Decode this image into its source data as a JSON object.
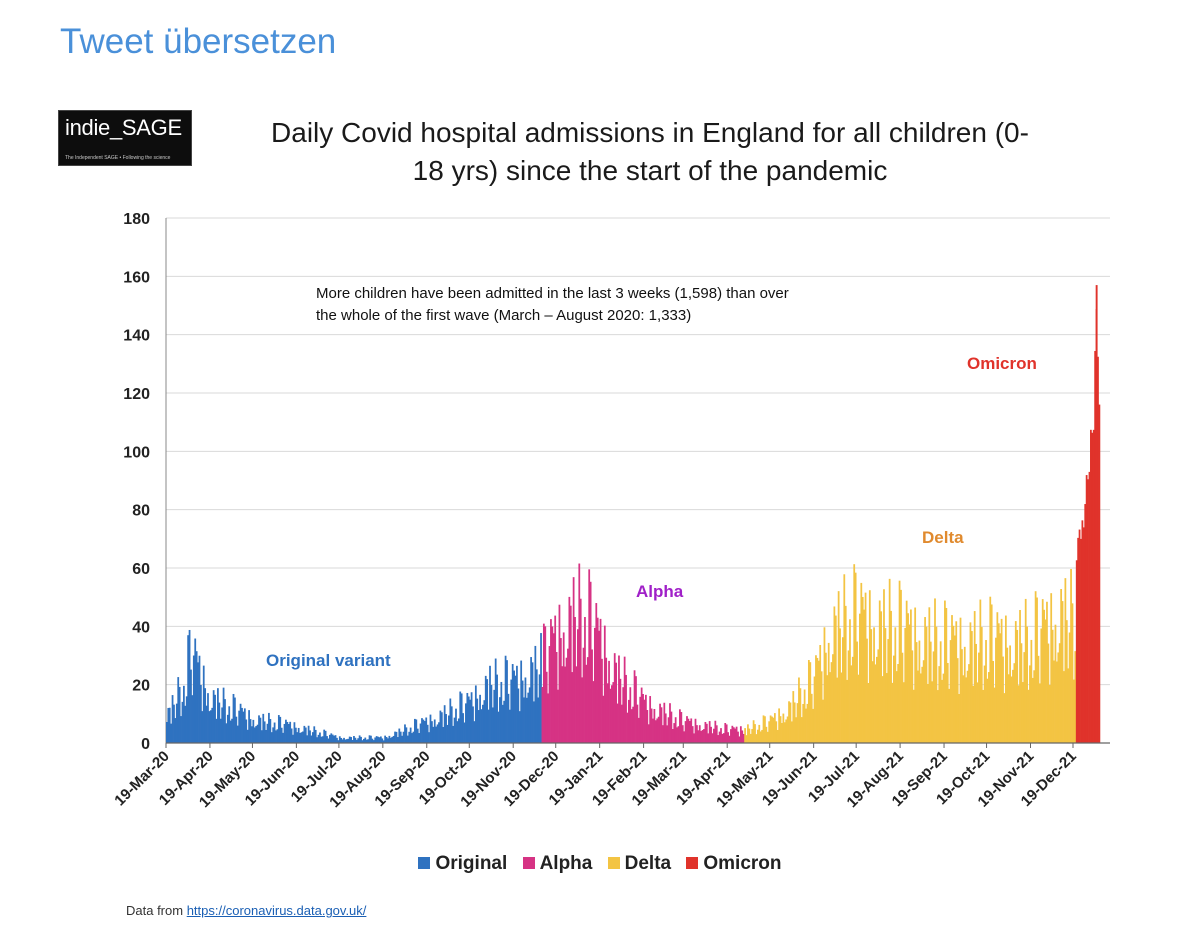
{
  "header": {
    "translate_link": "Tweet übersetzen"
  },
  "logo": {
    "text": "indie_SAGE",
    "tagline": "The Independent SAGE • Following the science"
  },
  "chart_data": {
    "type": "bar",
    "title": "Daily Covid hospital admissions in England for all children (0-18 yrs) since the start of the pandemic",
    "title_lines": [
      "Daily Covid hospital admissions in England for all children (0-",
      "18 yrs) since the start of the pandemic"
    ],
    "ylim": [
      0,
      180
    ],
    "yticks": [
      "0",
      "20",
      "40",
      "60",
      "80",
      "100",
      "120",
      "140",
      "160",
      "180"
    ],
    "xticks": [
      "19-Mar-20",
      "19-Apr-20",
      "19-May-20",
      "19-Jun-20",
      "19-Jul-20",
      "19-Aug-20",
      "19-Sep-20",
      "19-Oct-20",
      "19-Nov-20",
      "19-Dec-20",
      "19-Jan-21",
      "19-Feb-21",
      "19-Mar-21",
      "19-Apr-21",
      "19-May-21",
      "19-Jun-21",
      "19-Jul-21",
      "19-Aug-21",
      "19-Sep-21",
      "19-Oct-21",
      "19-Nov-21",
      "19-Dec-21"
    ],
    "grid": true,
    "legend_position": "bottom",
    "annotation_lines": [
      "More children have been admitted in the last 3 weeks (1,598) than over",
      "the whole of the first wave (March – August 2020: 1,333)"
    ],
    "series": [
      {
        "name": "Original",
        "color": "#2f72c0",
        "label": "Original variant",
        "points": [
          [
            "19-Mar-20",
            10
          ],
          [
            "01-Apr-20",
            22
          ],
          [
            "05-Apr-20",
            34
          ],
          [
            "19-Apr-20",
            17
          ],
          [
            "19-May-20",
            9
          ],
          [
            "19-Jun-20",
            6
          ],
          [
            "19-Jul-20",
            2
          ],
          [
            "19-Aug-20",
            2
          ],
          [
            "19-Sep-20",
            8
          ],
          [
            "19-Oct-20",
            15
          ],
          [
            "01-Nov-20",
            22
          ],
          [
            "19-Nov-20",
            23
          ],
          [
            "08-Dec-20",
            29
          ]
        ]
      },
      {
        "name": "Alpha",
        "color": "#d63384",
        "label": "Alpha",
        "points": [
          [
            "09-Dec-20",
            30
          ],
          [
            "19-Dec-20",
            40
          ],
          [
            "01-Jan-21",
            48
          ],
          [
            "10-Jan-21",
            46
          ],
          [
            "19-Jan-21",
            38
          ],
          [
            "01-Feb-21",
            25
          ],
          [
            "19-Feb-21",
            15
          ],
          [
            "19-Mar-21",
            8
          ],
          [
            "19-Apr-21",
            5
          ],
          [
            "30-Apr-21",
            5
          ]
        ]
      },
      {
        "name": "Delta",
        "color": "#f3c443",
        "label": "Delta",
        "points": [
          [
            "01-May-21",
            5
          ],
          [
            "19-May-21",
            8
          ],
          [
            "01-Jun-21",
            13
          ],
          [
            "19-Jun-21",
            24
          ],
          [
            "01-Jul-21",
            42
          ],
          [
            "19-Jul-21",
            47
          ],
          [
            "19-Aug-21",
            42
          ],
          [
            "19-Sep-21",
            37
          ],
          [
            "19-Oct-21",
            38
          ],
          [
            "19-Nov-21",
            38
          ],
          [
            "10-Dec-21",
            48
          ],
          [
            "20-Dec-21",
            45
          ]
        ]
      },
      {
        "name": "Omicron",
        "color": "#e0332b",
        "label": "Omicron",
        "points": [
          [
            "21-Dec-21",
            68
          ],
          [
            "25-Dec-21",
            75
          ],
          [
            "29-Dec-21",
            100
          ],
          [
            "02-Jan-22",
            120
          ],
          [
            "04-Jan-22",
            157
          ],
          [
            "06-Jan-22",
            127
          ]
        ]
      }
    ],
    "source_label": "Data from",
    "source_url": "https://coronavirus.data.gov.uk/"
  }
}
